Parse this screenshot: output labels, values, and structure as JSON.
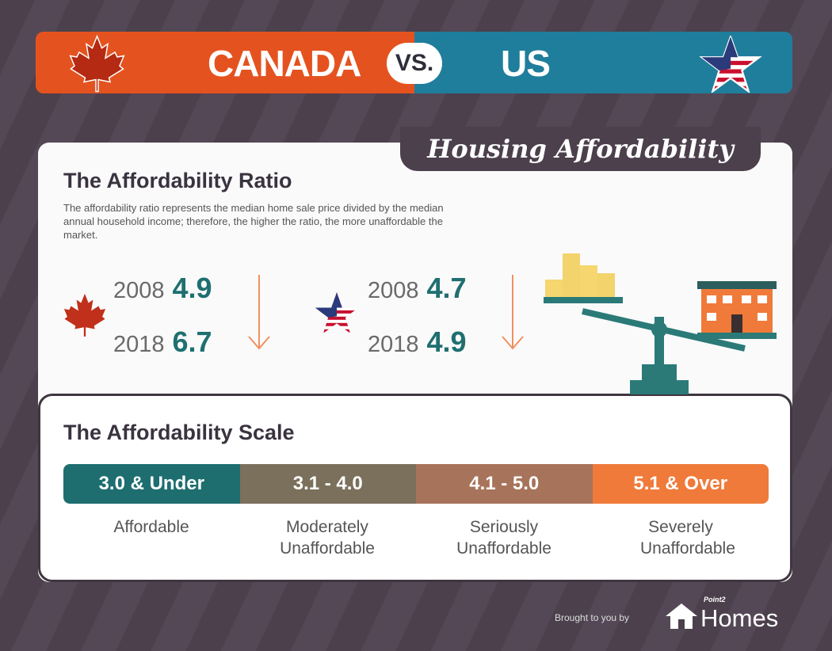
{
  "banner": {
    "left": "CANADA",
    "vs": "VS.",
    "right": "US"
  },
  "title_tab": "Housing Affordability",
  "ratio": {
    "heading": "The Affordability Ratio",
    "description": "The affordability ratio represents the median home sale price divided by the median annual household income; therefore, the higher the ratio, the more unaffordable the market.",
    "canada": [
      {
        "year": "2008",
        "value": "4.9"
      },
      {
        "year": "2018",
        "value": "6.7"
      }
    ],
    "us": [
      {
        "year": "2008",
        "value": "4.7"
      },
      {
        "year": "2018",
        "value": "4.9"
      }
    ]
  },
  "scale": {
    "heading": "The Affordability Scale",
    "items": [
      {
        "range": "3.0 & Under",
        "label": "Affordable",
        "color": "#1e6e70"
      },
      {
        "range": "3.1 - 4.0",
        "label": "Moderately Unaffordable",
        "color": "#7b705c"
      },
      {
        "range": "4.1 - 5.0",
        "label": "Seriously Unaffordable",
        "color": "#a7735a"
      },
      {
        "range": "5.1 & Over",
        "label": "Severely Unaffordable",
        "color": "#f07a3a"
      }
    ]
  },
  "footer": {
    "brought": "Brought to you by",
    "logo_small": "Point2",
    "logo": "Homes"
  }
}
